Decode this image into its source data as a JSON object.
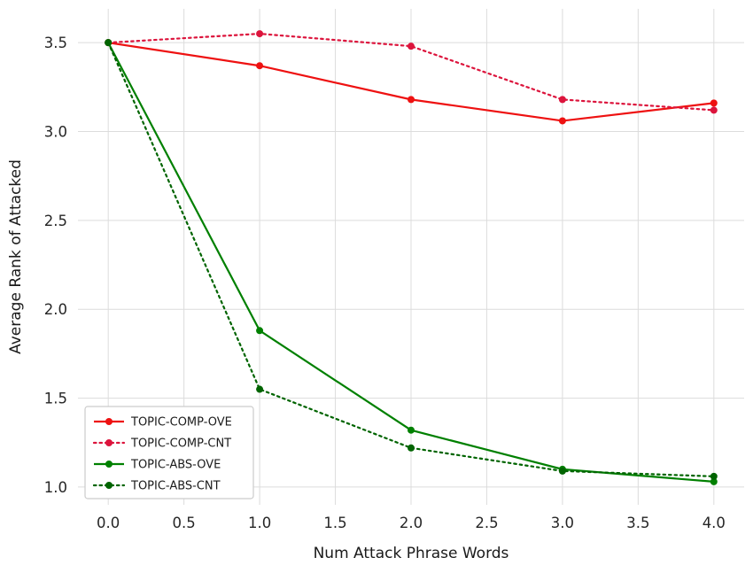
{
  "figure": {
    "background": "#ffffff",
    "grid_color": "#dcdcdc",
    "tick_color": "#262626",
    "legend_border_color": "#cccccc"
  },
  "chart_data": {
    "type": "line",
    "title": "",
    "xlabel": "Num Attack Phrase Words",
    "ylabel": "Average Rank of Attacked",
    "xlim": [
      -0.2,
      4.2
    ],
    "ylim": [
      0.9,
      3.69
    ],
    "grid": true,
    "legend_position": "lower-left",
    "x": [
      0,
      1,
      2,
      3,
      4
    ],
    "xtick_values": [
      0,
      0.5,
      1,
      1.5,
      2,
      2.5,
      3,
      3.5,
      4
    ],
    "xtick_labels": [
      "0.0",
      "0.5",
      "1.0",
      "1.5",
      "2.0",
      "2.5",
      "3.0",
      "3.5",
      "4.0"
    ],
    "ytick_values": [
      1,
      1.5,
      2,
      2.5,
      3,
      3.5
    ],
    "ytick_labels": [
      "1.0",
      "1.5",
      "2.0",
      "2.5",
      "3.0",
      "3.5"
    ],
    "series": [
      {
        "name": "TOPIC-COMP-OVE",
        "color": "#ee1111",
        "linestyle": "solid",
        "marker": "circle",
        "values": [
          3.5,
          3.37,
          3.18,
          3.06,
          3.16
        ]
      },
      {
        "name": "TOPIC-COMP-CNT",
        "color": "#dc143c",
        "linestyle": "dotted",
        "marker": "circle",
        "values": [
          3.5,
          3.55,
          3.48,
          3.18,
          3.12
        ]
      },
      {
        "name": "TOPIC-ABS-OVE",
        "color": "#008000",
        "linestyle": "solid",
        "marker": "circle",
        "values": [
          3.5,
          1.88,
          1.32,
          1.1,
          1.03
        ]
      },
      {
        "name": "TOPIC-ABS-CNT",
        "color": "#006400",
        "linestyle": "dotted",
        "marker": "circle",
        "values": [
          3.5,
          1.55,
          1.22,
          1.09,
          1.06
        ]
      }
    ]
  }
}
